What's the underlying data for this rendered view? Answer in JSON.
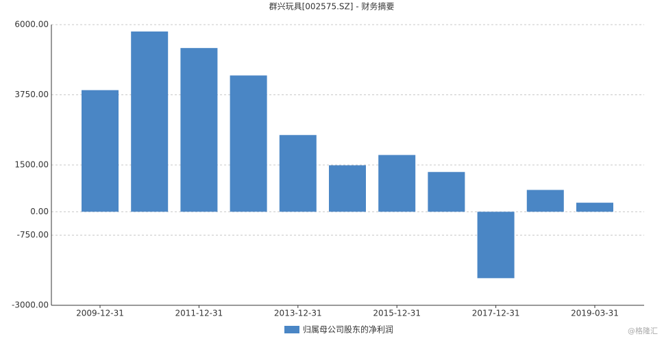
{
  "chart_data": {
    "type": "bar",
    "title": "群兴玩具[002575.SZ] - 财务摘要",
    "categories": [
      "2009-12-31",
      null,
      "2011-12-31",
      null,
      "2013-12-31",
      null,
      "2015-12-31",
      null,
      "2017-12-31",
      null,
      "2019-03-31"
    ],
    "series": [
      {
        "name": "归属母公司股东的净利润",
        "color": "#4a86c5",
        "values": [
          3900,
          5780,
          5250,
          4370,
          2460,
          1490,
          1820,
          1275,
          -2130,
          700,
          290
        ]
      }
    ],
    "ylim": [
      -3000,
      6000
    ],
    "yticks": [
      {
        "value": -3000,
        "label": "-3000.00"
      },
      {
        "value": -750,
        "label": "-750.00"
      },
      {
        "value": 0,
        "label": "0.00"
      },
      {
        "value": 1500,
        "label": "1500.00"
      },
      {
        "value": 3750,
        "label": "3750.00"
      },
      {
        "value": 6000,
        "label": "6000.00"
      }
    ],
    "grid": true,
    "legend": "bottom",
    "watermark": "@格隆汇"
  }
}
